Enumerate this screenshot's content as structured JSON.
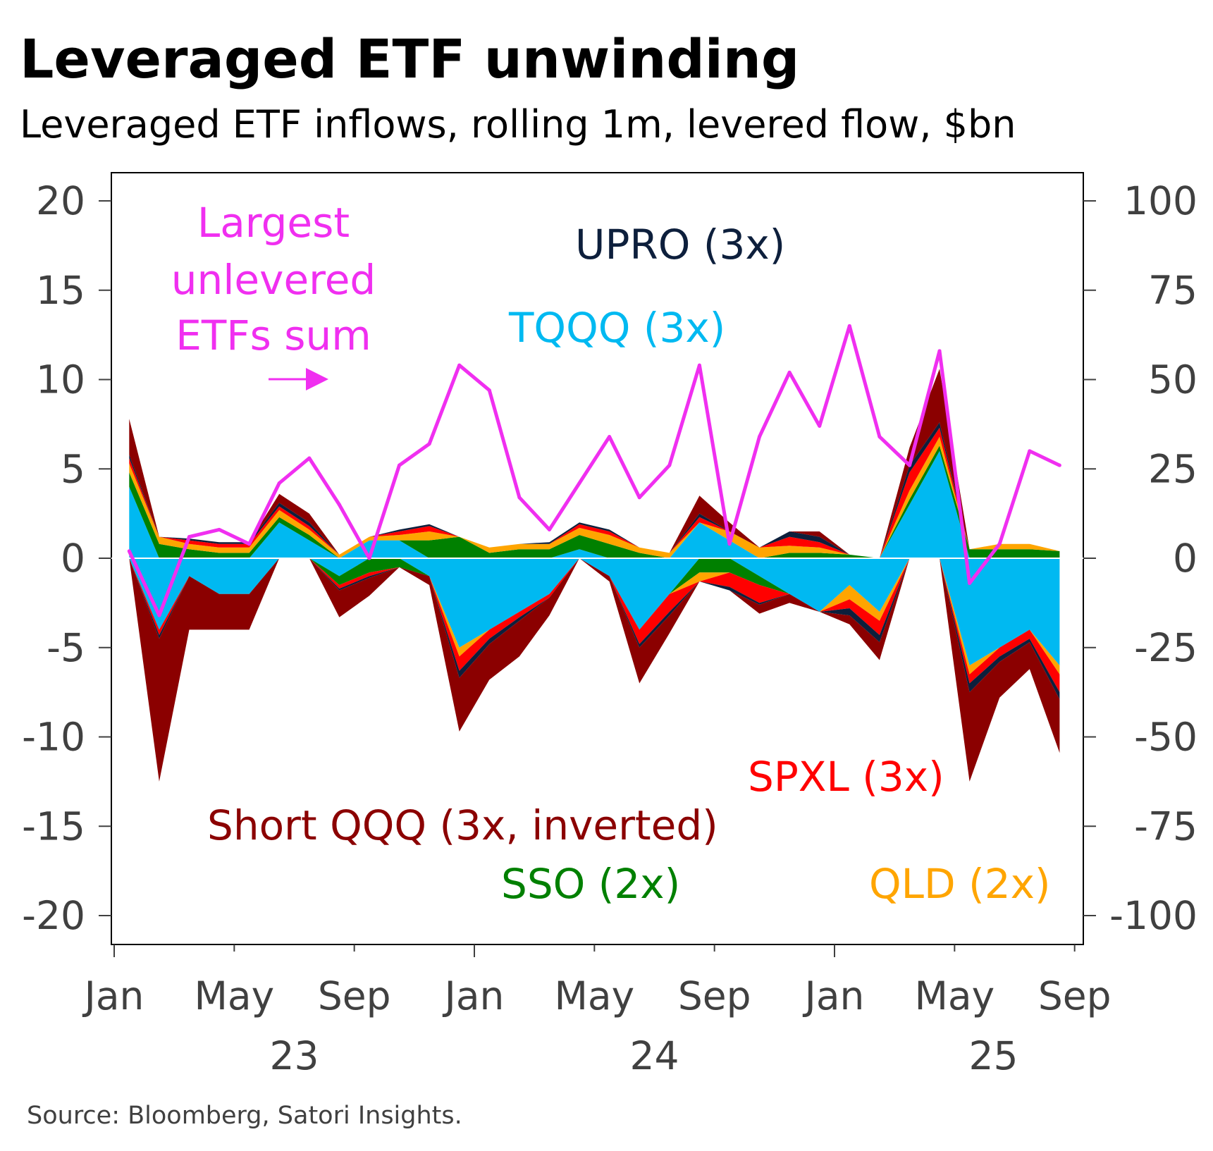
{
  "title": "Leveraged ETF unwinding",
  "subtitle": "Leveraged ETF inflows, rolling 1m, levered flow, $bn",
  "source": "Source: Bloomberg, Satori Insights.",
  "chart_data": {
    "type": "area",
    "stacked": true,
    "x": [
      "2023-01",
      "2023-02",
      "2023-03",
      "2023-04",
      "2023-05",
      "2023-06",
      "2023-07",
      "2023-08",
      "2023-09",
      "2023-10",
      "2023-11",
      "2023-12",
      "2024-01",
      "2024-02",
      "2024-03",
      "2024-04",
      "2024-05",
      "2024-06",
      "2024-07",
      "2024-08",
      "2024-09",
      "2024-10",
      "2024-11",
      "2024-12",
      "2025-01",
      "2025-02",
      "2025-03",
      "2025-04",
      "2025-05",
      "2025-06",
      "2025-07",
      "2025-08"
    ],
    "x_tick_labels": [
      "Jan",
      "May",
      "Sep",
      "Jan",
      "May",
      "Sep",
      "Jan",
      "May",
      "Sep"
    ],
    "x_year_labels": [
      "23",
      "24",
      "25"
    ],
    "y_left": {
      "ylim": [
        -20,
        20
      ],
      "ticks": [
        "20",
        "15",
        "10",
        "5",
        "0",
        "-5",
        "-10",
        "-15",
        "-20"
      ]
    },
    "y_right": {
      "ylim": [
        -100,
        100
      ],
      "ticks": [
        "100",
        "75",
        "50",
        "25",
        "0",
        "-25",
        "-50",
        "-75",
        "-100"
      ]
    },
    "series": [
      {
        "name": "TQQQ (3x)",
        "color": "#00b9f1",
        "axis": "left",
        "values": [
          4,
          -4,
          -1,
          -2,
          -2,
          2,
          1,
          -1,
          1,
          1,
          -1,
          -5,
          -4,
          -3,
          -2,
          0.5,
          -1,
          -4,
          -2,
          2,
          1,
          -1,
          -2,
          -3,
          -1.5,
          -3,
          3,
          6,
          -6,
          -5,
          -4,
          -6
        ]
      },
      {
        "name": "SSO (2x)",
        "color": "#008000",
        "axis": "left",
        "values": [
          0.8,
          0.8,
          0.5,
          0.3,
          0.3,
          0.3,
          0.3,
          -0.5,
          -0.8,
          -0.5,
          1,
          1.2,
          0.3,
          0.5,
          0.5,
          0.8,
          0.8,
          0.3,
          0,
          -0.8,
          -0.8,
          -0.5,
          0.3,
          0.3,
          0.2,
          0,
          0.3,
          0.3,
          0.5,
          0.5,
          0.5,
          0.4
        ]
      },
      {
        "name": "QLD (2x)",
        "color": "#ffa500",
        "axis": "left",
        "values": [
          0.5,
          0.4,
          0.3,
          0.3,
          0.3,
          0.4,
          0.3,
          0.2,
          0.2,
          0.3,
          0.5,
          -0.5,
          0.3,
          0.3,
          0.3,
          0.4,
          0.5,
          0.3,
          0.3,
          -0.5,
          0.5,
          0.6,
          0.4,
          0.3,
          -0.8,
          -0.5,
          0.5,
          0.5,
          -0.5,
          0.3,
          0.3,
          -0.5
        ]
      },
      {
        "name": "SPXL (3x)",
        "color": "#ff0000",
        "axis": "left",
        "values": [
          0.3,
          -0.3,
          0.2,
          0.2,
          0.2,
          0.2,
          0.2,
          -0.2,
          -0.2,
          0.2,
          0.3,
          -0.8,
          -0.5,
          -0.3,
          -0.2,
          0.2,
          0.2,
          -0.8,
          -1,
          0.3,
          -0.8,
          -1,
          0.5,
          0.3,
          -0.5,
          -0.8,
          1,
          0.5,
          -0.5,
          -0.5,
          -0.5,
          -1
        ]
      },
      {
        "name": "UPRO (3x)",
        "color": "#0d1f3c",
        "axis": "left",
        "values": [
          0.2,
          -0.2,
          0.1,
          0.1,
          0.1,
          0.2,
          0.2,
          -0.1,
          -0.1,
          0.1,
          0.1,
          -0.4,
          -0.3,
          -0.2,
          0.1,
          0.1,
          0.1,
          -0.2,
          -0.2,
          0.2,
          -0.2,
          -0.1,
          0.3,
          0.3,
          -0.4,
          -0.4,
          0.4,
          0.3,
          -0.5,
          -0.3,
          -0.2,
          -0.4
        ]
      },
      {
        "name": "Short QQQ (3x, inverted)",
        "color": "#8b0000",
        "axis": "left",
        "values": [
          2,
          -8,
          -3,
          -2,
          -2,
          0.5,
          0.5,
          -1.5,
          -1,
          0,
          -0.5,
          -3,
          -2,
          -2,
          -1,
          0,
          -0.3,
          -2,
          -1,
          1,
          0.5,
          -0.5,
          -0.5,
          0.3,
          -0.5,
          -1,
          1,
          3,
          -5,
          -2,
          -1.5,
          -3
        ]
      }
    ],
    "line": {
      "name": "Largest unlevered ETFs sum",
      "color": "#f02ff0",
      "axis": "right",
      "values": [
        2,
        -16,
        6,
        8,
        4,
        21,
        28,
        15,
        0,
        26,
        32,
        54,
        47,
        17,
        8,
        21,
        34,
        17,
        26,
        54,
        4,
        34,
        52,
        37,
        65,
        34,
        26,
        58,
        -7,
        4,
        30,
        26
      ]
    },
    "labels": {
      "line_label": [
        "Largest",
        "unlevered",
        "ETFs sum"
      ],
      "arrow": "→",
      "upro": "UPRO (3x)",
      "tqqq": "TQQQ (3x)",
      "spxl": "SPXL (3x)",
      "short_qqq": "Short QQQ (3x, inverted)",
      "sso": "SSO (2x)",
      "qld": "QLD (2x)"
    },
    "grid": false
  }
}
